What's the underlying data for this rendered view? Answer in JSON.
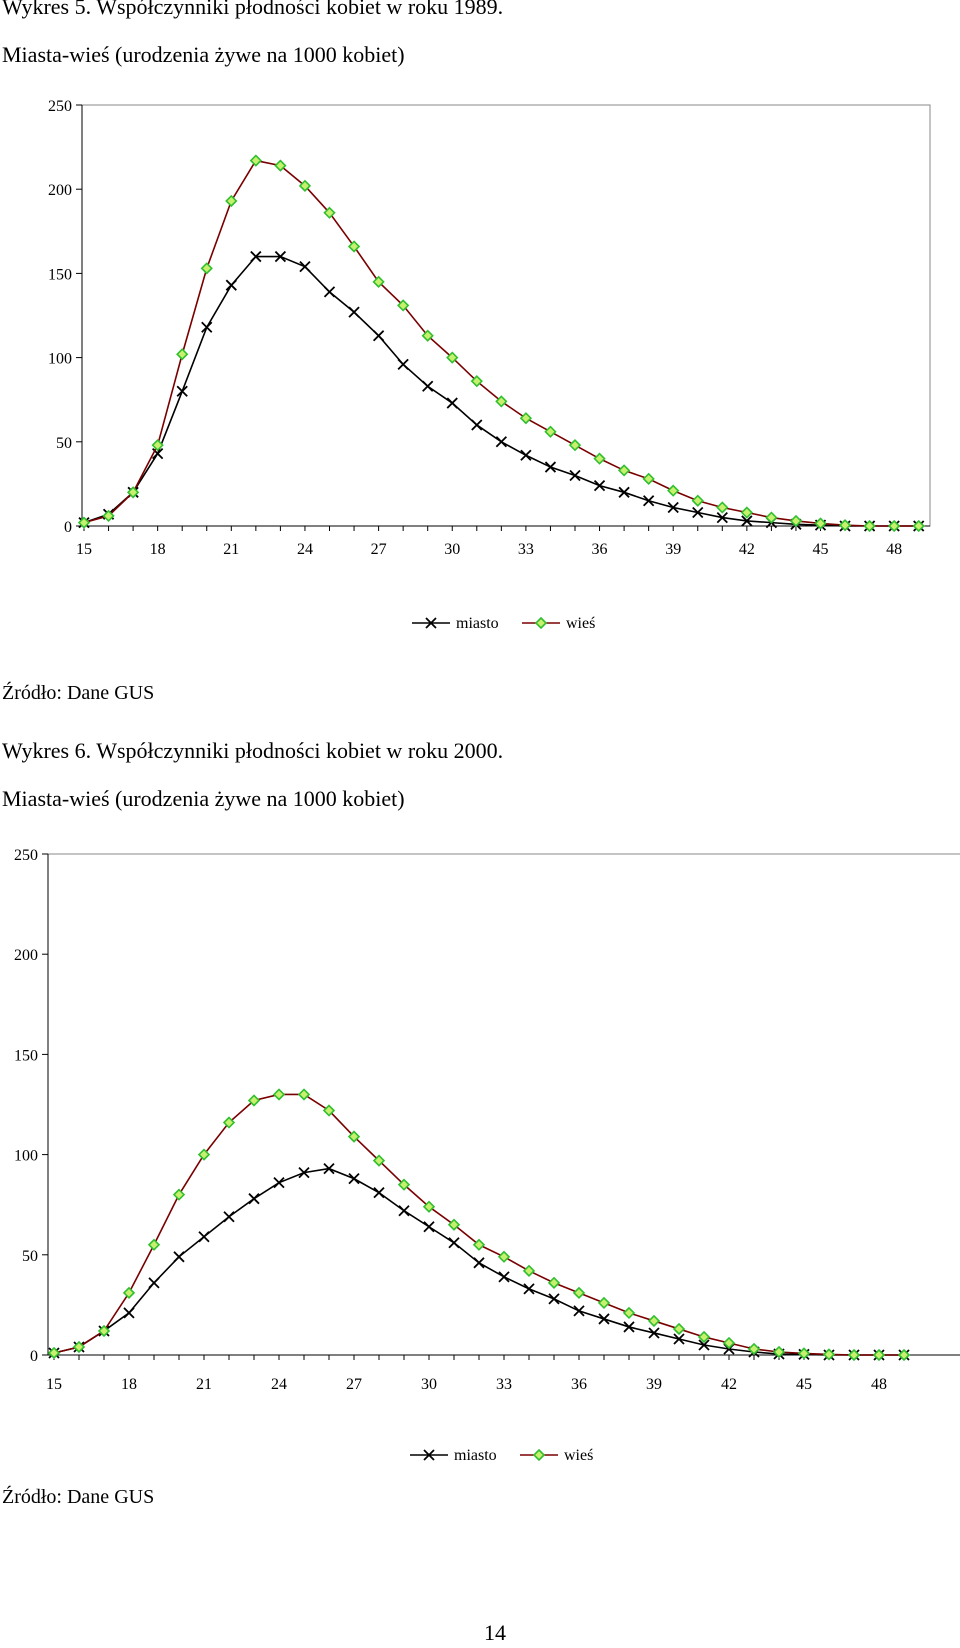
{
  "page": {
    "number": "14"
  },
  "figures": [
    {
      "caption_line1": "Wykres 5. Współczynniki płodności kobiet w roku 1989.",
      "caption_line2": "Miasta-wieś (urodzenia żywe na 1000 kobiet)",
      "source": "Źródło: Dane GUS"
    },
    {
      "caption_line1": "Wykres 6. Współczynniki płodności kobiet w roku 2000.",
      "caption_line2": "Miasta-wieś (urodzenia żywe na 1000 kobiet)",
      "source": "Źródło: Dane GUS"
    }
  ],
  "chart_data": [
    {
      "type": "line",
      "title": "Wykres 5. Współczynniki płodności kobiet w roku 1989.",
      "x": [
        15,
        16,
        17,
        18,
        19,
        20,
        21,
        22,
        23,
        24,
        25,
        26,
        27,
        28,
        29,
        30,
        31,
        32,
        33,
        34,
        35,
        36,
        37,
        38,
        39,
        40,
        41,
        42,
        43,
        44,
        45,
        46,
        47,
        48,
        49
      ],
      "x_ticks": [
        "15",
        "18",
        "21",
        "24",
        "27",
        "30",
        "33",
        "36",
        "39",
        "42",
        "45",
        "48"
      ],
      "ylim": [
        0,
        250
      ],
      "y_ticks": [
        "0",
        "50",
        "100",
        "150",
        "200",
        "250"
      ],
      "grid": false,
      "legend_position": "bottom-center",
      "series": [
        {
          "name": "miasto",
          "marker": "x",
          "color": "#000000",
          "values": [
            2,
            7,
            20,
            43,
            80,
            118,
            143,
            160,
            160,
            154,
            139,
            127,
            113,
            96,
            83,
            73,
            60,
            50,
            42,
            35,
            30,
            24,
            20,
            15,
            11,
            8,
            5,
            3,
            2,
            1,
            0.5,
            0,
            0,
            0,
            0
          ]
        },
        {
          "name": "wieś",
          "marker": "diamond",
          "color": "#7a0000",
          "marker_fill": "#c8f06e",
          "marker_stroke": "#2fbf2f",
          "values": [
            2,
            6,
            20,
            48,
            102,
            153,
            193,
            217,
            214,
            202,
            186,
            166,
            145,
            131,
            113,
            100,
            86,
            74,
            64,
            56,
            48,
            40,
            33,
            28,
            21,
            15,
            11,
            8,
            5,
            3,
            1.5,
            0.5,
            0,
            0,
            0
          ]
        }
      ]
    },
    {
      "type": "line",
      "title": "Wykres 6. Współczynniki płodności kobiet w roku 2000.",
      "x": [
        15,
        16,
        17,
        18,
        19,
        20,
        21,
        22,
        23,
        24,
        25,
        26,
        27,
        28,
        29,
        30,
        31,
        32,
        33,
        34,
        35,
        36,
        37,
        38,
        39,
        40,
        41,
        42,
        43,
        44,
        45,
        46,
        47,
        48,
        49
      ],
      "x_ticks": [
        "15",
        "18",
        "21",
        "24",
        "27",
        "30",
        "33",
        "36",
        "39",
        "42",
        "45",
        "48"
      ],
      "ylim": [
        0,
        250
      ],
      "y_ticks": [
        "0",
        "50",
        "100",
        "150",
        "200",
        "250"
      ],
      "grid": false,
      "legend_position": "bottom-center",
      "series": [
        {
          "name": "miasto",
          "marker": "x",
          "color": "#000000",
          "values": [
            1,
            4,
            12,
            21,
            36,
            49,
            59,
            69,
            78,
            86,
            91,
            93,
            88,
            81,
            72,
            64,
            56,
            46,
            39,
            33,
            28,
            22,
            18,
            14,
            11,
            8,
            5,
            3,
            1.5,
            0.5,
            0.3,
            0,
            0,
            0,
            0
          ]
        },
        {
          "name": "wieś",
          "marker": "diamond",
          "color": "#7a0000",
          "marker_fill": "#c8f06e",
          "marker_stroke": "#2fbf2f",
          "values": [
            1,
            4,
            12,
            31,
            55,
            80,
            100,
            116,
            127,
            130,
            130,
            122,
            109,
            97,
            85,
            74,
            65,
            55,
            49,
            42,
            36,
            31,
            26,
            21,
            17,
            13,
            9,
            6,
            3,
            1.5,
            0.8,
            0.3,
            0,
            0,
            0
          ]
        }
      ]
    }
  ]
}
